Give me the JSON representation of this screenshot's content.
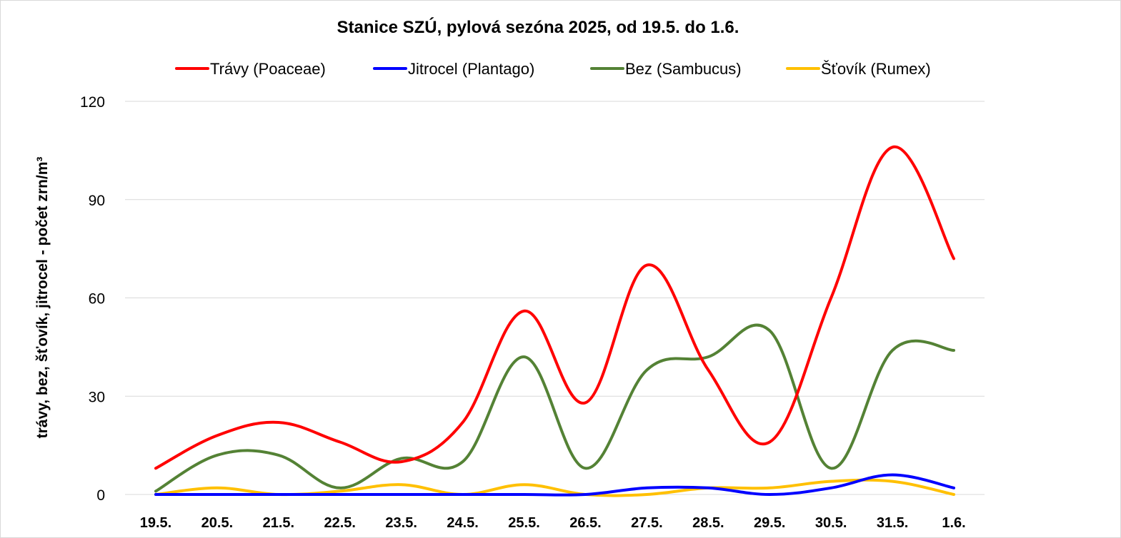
{
  "chart_data": {
    "type": "line",
    "title": "Stanice SZÚ, pylová sezóna 2025, od 19.5. do 1.6.",
    "ylabel": "trávy, bez, šťovík, jitrocel - počet zrn/m³",
    "xlabel": "",
    "categories": [
      "19.5.",
      "20.5.",
      "21.5.",
      "22.5.",
      "23.5.",
      "24.5.",
      "25.5.",
      "26.5.",
      "27.5.",
      "28.5.",
      "29.5.",
      "30.5.",
      "31.5.",
      "1.6."
    ],
    "ylim": [
      0,
      120
    ],
    "yticks": [
      "0",
      "30",
      "60",
      "90",
      "120"
    ],
    "grid": true,
    "legend_position": "top",
    "smooth": true,
    "series": [
      {
        "name": "Trávy (Poaceae)",
        "color": "#ff0000",
        "values": [
          8,
          18,
          22,
          16,
          10,
          22,
          56,
          28,
          70,
          38,
          16,
          60,
          106,
          72
        ]
      },
      {
        "name": "Jitrocel (Plantago)",
        "color": "#0000ff",
        "values": [
          0,
          0,
          0,
          0,
          0,
          0,
          0,
          0,
          2,
          2,
          0,
          2,
          6,
          2
        ]
      },
      {
        "name": "Bez (Sambucus)",
        "color": "#548235",
        "values": [
          1,
          12,
          12,
          2,
          11,
          10,
          42,
          8,
          38,
          42,
          50,
          8,
          44,
          44
        ]
      },
      {
        "name": "Šťovík (Rumex)",
        "color": "#ffc000",
        "values": [
          0,
          2,
          0,
          1,
          3,
          0,
          3,
          0,
          0,
          2,
          2,
          4,
          4,
          0
        ]
      }
    ]
  }
}
